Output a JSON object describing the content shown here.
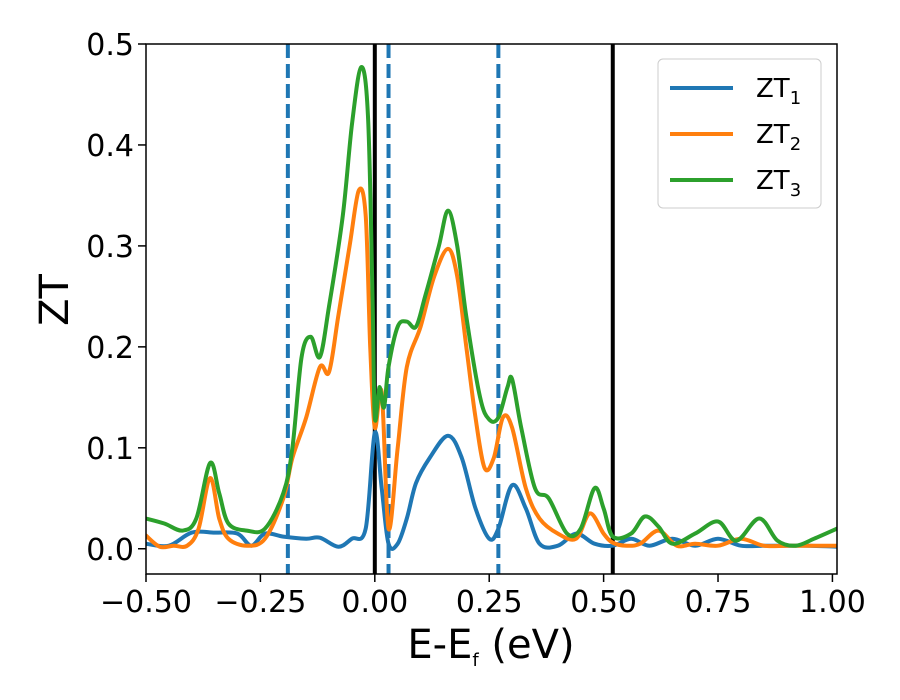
{
  "chart_data": {
    "type": "line",
    "xlabel": "E-E",
    "xlabel_sub": "f",
    "xlabel_unit": " (eV)",
    "ylabel": "ZT",
    "xlim": [
      -0.5,
      1.01
    ],
    "ylim": [
      -0.025,
      0.5
    ],
    "xticks": [
      -0.5,
      -0.25,
      0.0,
      0.25,
      0.5,
      0.75,
      1.0
    ],
    "xtick_labels": [
      "−0.50",
      "−0.25",
      "0.00",
      "0.25",
      "0.50",
      "0.75",
      "1.00"
    ],
    "yticks": [
      0.0,
      0.1,
      0.2,
      0.3,
      0.4,
      0.5
    ],
    "ytick_labels": [
      "0.0",
      "0.1",
      "0.2",
      "0.3",
      "0.4",
      "0.5"
    ],
    "grid": false,
    "legend_position": "top-right",
    "vertical_lines": [
      {
        "x": -0.19,
        "style": "dashed",
        "color": "#1f77b4"
      },
      {
        "x": 0.03,
        "style": "dashed",
        "color": "#1f77b4"
      },
      {
        "x": 0.27,
        "style": "dashed",
        "color": "#1f77b4"
      },
      {
        "x": 0.0,
        "style": "solid",
        "color": "#000000"
      },
      {
        "x": 0.52,
        "style": "solid",
        "color": "#000000"
      }
    ],
    "series": [
      {
        "name": "ZT",
        "name_sub": "1",
        "color": "#1f77b4",
        "points": [
          [
            -0.5,
            0.005
          ],
          [
            -0.45,
            0.003
          ],
          [
            -0.4,
            0.016
          ],
          [
            -0.35,
            0.016
          ],
          [
            -0.3,
            0.015
          ],
          [
            -0.27,
            0.003
          ],
          [
            -0.24,
            0.015
          ],
          [
            -0.2,
            0.012
          ],
          [
            -0.15,
            0.01
          ],
          [
            -0.12,
            0.011
          ],
          [
            -0.08,
            0.002
          ],
          [
            -0.05,
            0.01
          ],
          [
            -0.02,
            0.02
          ],
          [
            0.0,
            0.115
          ],
          [
            0.015,
            0.06
          ],
          [
            0.03,
            0.005
          ],
          [
            0.05,
            0.005
          ],
          [
            0.07,
            0.03
          ],
          [
            0.09,
            0.065
          ],
          [
            0.12,
            0.09
          ],
          [
            0.16,
            0.112
          ],
          [
            0.19,
            0.09
          ],
          [
            0.22,
            0.04
          ],
          [
            0.25,
            0.01
          ],
          [
            0.27,
            0.02
          ],
          [
            0.3,
            0.063
          ],
          [
            0.33,
            0.04
          ],
          [
            0.36,
            0.005
          ],
          [
            0.4,
            0.003
          ],
          [
            0.44,
            0.015
          ],
          [
            0.48,
            0.005
          ],
          [
            0.52,
            0.003
          ],
          [
            0.56,
            0.01
          ],
          [
            0.6,
            0.003
          ],
          [
            0.65,
            0.01
          ],
          [
            0.7,
            0.003
          ],
          [
            0.75,
            0.01
          ],
          [
            0.8,
            0.003
          ],
          [
            0.85,
            0.003
          ],
          [
            0.9,
            0.003
          ],
          [
            0.95,
            0.003
          ],
          [
            1.01,
            0.002
          ]
        ]
      },
      {
        "name": "ZT",
        "name_sub": "2",
        "color": "#ff7f0e",
        "points": [
          [
            -0.5,
            0.013
          ],
          [
            -0.47,
            0.002
          ],
          [
            -0.44,
            0.003
          ],
          [
            -0.41,
            0.003
          ],
          [
            -0.385,
            0.02
          ],
          [
            -0.36,
            0.07
          ],
          [
            -0.34,
            0.03
          ],
          [
            -0.32,
            0.01
          ],
          [
            -0.28,
            0.003
          ],
          [
            -0.24,
            0.01
          ],
          [
            -0.2,
            0.05
          ],
          [
            -0.18,
            0.09
          ],
          [
            -0.15,
            0.13
          ],
          [
            -0.12,
            0.18
          ],
          [
            -0.1,
            0.175
          ],
          [
            -0.08,
            0.23
          ],
          [
            -0.055,
            0.3
          ],
          [
            -0.035,
            0.355
          ],
          [
            -0.02,
            0.33
          ],
          [
            -0.01,
            0.2
          ],
          [
            0.0,
            0.12
          ],
          [
            0.015,
            0.155
          ],
          [
            0.03,
            0.02
          ],
          [
            0.05,
            0.1
          ],
          [
            0.07,
            0.18
          ],
          [
            0.1,
            0.22
          ],
          [
            0.13,
            0.27
          ],
          [
            0.16,
            0.297
          ],
          [
            0.18,
            0.27
          ],
          [
            0.2,
            0.2
          ],
          [
            0.22,
            0.13
          ],
          [
            0.24,
            0.08
          ],
          [
            0.26,
            0.09
          ],
          [
            0.28,
            0.13
          ],
          [
            0.3,
            0.12
          ],
          [
            0.33,
            0.06
          ],
          [
            0.36,
            0.03
          ],
          [
            0.4,
            0.015
          ],
          [
            0.44,
            0.01
          ],
          [
            0.47,
            0.035
          ],
          [
            0.5,
            0.015
          ],
          [
            0.52,
            0.006
          ],
          [
            0.55,
            0.003
          ],
          [
            0.58,
            0.005
          ],
          [
            0.62,
            0.018
          ],
          [
            0.66,
            0.003
          ],
          [
            0.7,
            0.005
          ],
          [
            0.75,
            0.003
          ],
          [
            0.8,
            0.01
          ],
          [
            0.85,
            0.003
          ],
          [
            0.9,
            0.003
          ],
          [
            0.95,
            0.003
          ],
          [
            1.01,
            0.003
          ]
        ]
      },
      {
        "name": "ZT",
        "name_sub": "3",
        "color": "#2ca02c",
        "points": [
          [
            -0.5,
            0.03
          ],
          [
            -0.46,
            0.025
          ],
          [
            -0.42,
            0.018
          ],
          [
            -0.39,
            0.03
          ],
          [
            -0.36,
            0.085
          ],
          [
            -0.34,
            0.055
          ],
          [
            -0.32,
            0.025
          ],
          [
            -0.28,
            0.018
          ],
          [
            -0.24,
            0.02
          ],
          [
            -0.2,
            0.055
          ],
          [
            -0.18,
            0.1
          ],
          [
            -0.16,
            0.19
          ],
          [
            -0.14,
            0.21
          ],
          [
            -0.12,
            0.19
          ],
          [
            -0.1,
            0.24
          ],
          [
            -0.07,
            0.33
          ],
          [
            -0.05,
            0.42
          ],
          [
            -0.03,
            0.477
          ],
          [
            -0.015,
            0.43
          ],
          [
            -0.005,
            0.25
          ],
          [
            0.0,
            0.13
          ],
          [
            0.01,
            0.16
          ],
          [
            0.02,
            0.14
          ],
          [
            0.03,
            0.18
          ],
          [
            0.05,
            0.22
          ],
          [
            0.07,
            0.225
          ],
          [
            0.09,
            0.22
          ],
          [
            0.11,
            0.25
          ],
          [
            0.14,
            0.3
          ],
          [
            0.16,
            0.335
          ],
          [
            0.18,
            0.3
          ],
          [
            0.2,
            0.23
          ],
          [
            0.23,
            0.15
          ],
          [
            0.25,
            0.128
          ],
          [
            0.27,
            0.13
          ],
          [
            0.29,
            0.16
          ],
          [
            0.3,
            0.168
          ],
          [
            0.32,
            0.12
          ],
          [
            0.35,
            0.06
          ],
          [
            0.38,
            0.05
          ],
          [
            0.42,
            0.015
          ],
          [
            0.45,
            0.02
          ],
          [
            0.48,
            0.06
          ],
          [
            0.5,
            0.04
          ],
          [
            0.52,
            0.012
          ],
          [
            0.56,
            0.015
          ],
          [
            0.59,
            0.032
          ],
          [
            0.62,
            0.022
          ],
          [
            0.65,
            0.005
          ],
          [
            0.7,
            0.015
          ],
          [
            0.75,
            0.027
          ],
          [
            0.79,
            0.008
          ],
          [
            0.84,
            0.03
          ],
          [
            0.88,
            0.008
          ],
          [
            0.92,
            0.003
          ],
          [
            0.96,
            0.01
          ],
          [
            1.01,
            0.02
          ]
        ]
      }
    ]
  }
}
